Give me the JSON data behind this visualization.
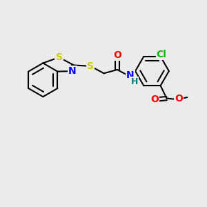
{
  "background_color": "#ebebeb",
  "bond_color": "#000000",
  "atom_colors": {
    "S": "#cccc00",
    "N": "#0000ff",
    "O": "#ff0000",
    "Cl": "#00bb00",
    "H": "#008080",
    "C": "#000000"
  },
  "font_size": 9.5,
  "figsize": [
    3.0,
    3.0
  ],
  "dpi": 100
}
